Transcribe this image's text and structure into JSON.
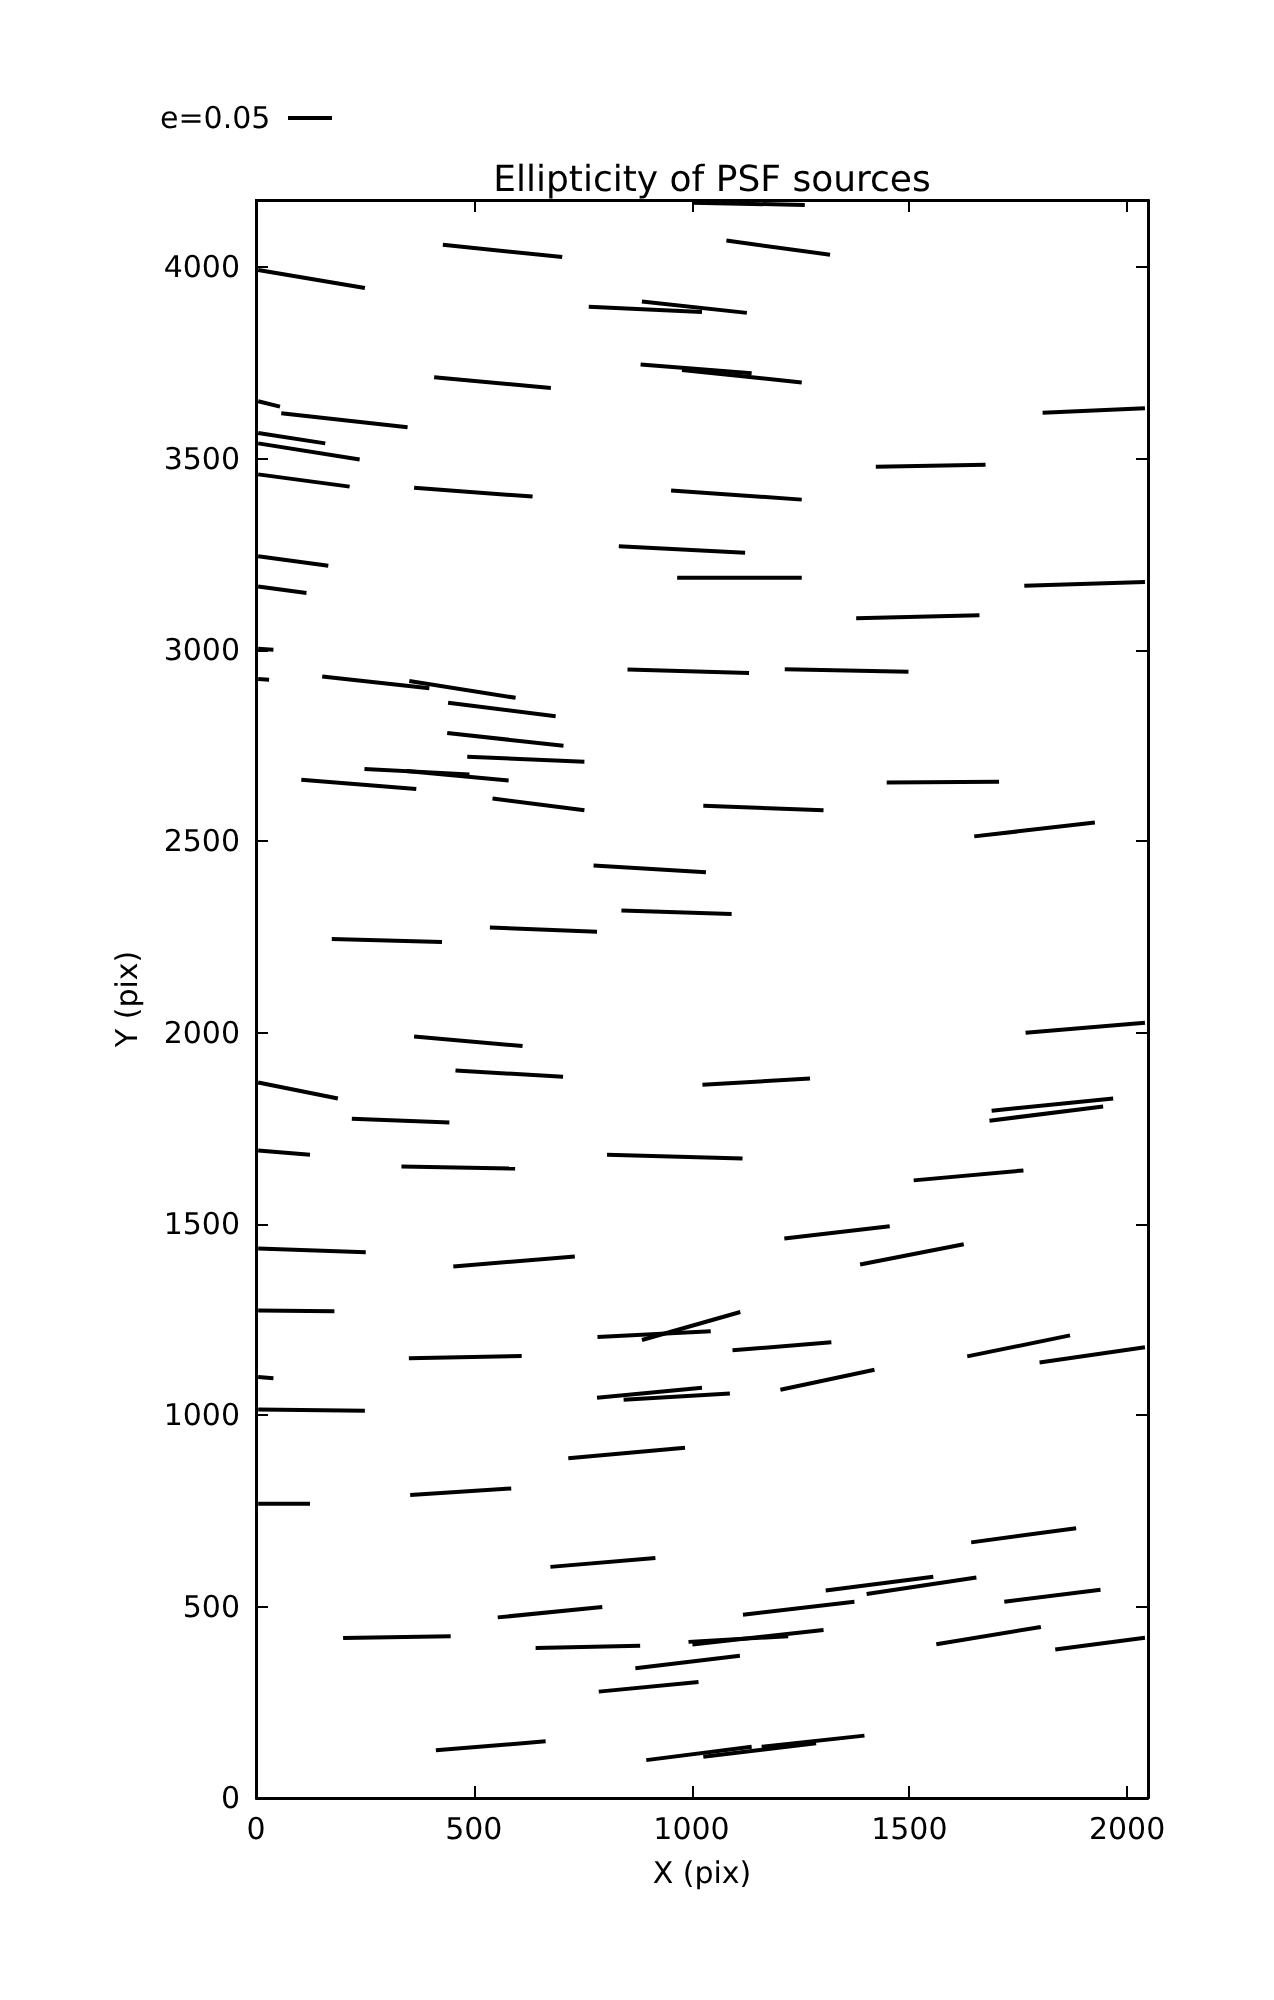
{
  "chart_data": {
    "type": "line",
    "title": "Ellipticity of PSF sources",
    "xlabel": "X (pix)",
    "ylabel": "Y (pix)",
    "annotations": [
      "e=0.05"
    ],
    "xlim": [
      0,
      2048
    ],
    "xticks": [
      0,
      500,
      1000,
      1500,
      2000
    ],
    "ylim": [
      0,
      4176
    ],
    "yticks": [
      0,
      500,
      1000,
      1500,
      2000,
      2500,
      3000,
      3500,
      4000
    ],
    "grid": false,
    "marker": "none",
    "line_style": "solid",
    "series": [
      {
        "color": "#000000",
        "x": [
          1001,
          1260
        ],
        "values": [
          4169,
          4163
        ]
      },
      {
        "color": "#000000",
        "x": [
          429,
          703
        ],
        "values": [
          4059,
          4027
        ]
      },
      {
        "color": "#000000",
        "x": [
          1080,
          1318
        ],
        "values": [
          4070,
          4033
        ]
      },
      {
        "color": "#000000",
        "x": [
          5,
          250
        ],
        "values": [
          3993,
          3946
        ]
      },
      {
        "color": "#000000",
        "x": [
          764,
          1024
        ],
        "values": [
          3897,
          3883
        ]
      },
      {
        "color": "#000000",
        "x": [
          886,
          1127
        ],
        "values": [
          3911,
          3881
        ]
      },
      {
        "color": "#000000",
        "x": [
          409,
          677
        ],
        "values": [
          3713,
          3685
        ]
      },
      {
        "color": "#000000",
        "x": [
          883,
          1138
        ],
        "values": [
          3746,
          3723
        ]
      },
      {
        "color": "#000000",
        "x": [
          978,
          1253
        ],
        "values": [
          3732,
          3699
        ]
      },
      {
        "color": "#000000",
        "x": [
          5,
          55
        ],
        "values": [
          3650,
          3636
        ]
      },
      {
        "color": "#000000",
        "x": [
          58,
          348
        ],
        "values": [
          3619,
          3582
        ]
      },
      {
        "color": "#000000",
        "x": [
          5,
          159
        ],
        "values": [
          3567,
          3540
        ]
      },
      {
        "color": "#000000",
        "x": [
          5,
          238
        ],
        "values": [
          3540,
          3498
        ]
      },
      {
        "color": "#000000",
        "x": [
          1806,
          2041
        ],
        "values": [
          3620,
          3632
        ]
      },
      {
        "color": "#000000",
        "x": [
          1423,
          1675
        ],
        "values": [
          3479,
          3484
        ]
      },
      {
        "color": "#000000",
        "x": [
          5,
          215
        ],
        "values": [
          3459,
          3427
        ]
      },
      {
        "color": "#000000",
        "x": [
          363,
          635
        ],
        "values": [
          3424,
          3401
        ]
      },
      {
        "color": "#000000",
        "x": [
          953,
          1253
        ],
        "values": [
          3417,
          3393
        ]
      },
      {
        "color": "#000000",
        "x": [
          5,
          166
        ],
        "values": [
          3245,
          3220
        ]
      },
      {
        "color": "#000000",
        "x": [
          833,
          1123
        ],
        "values": [
          3271,
          3254
        ]
      },
      {
        "color": "#000000",
        "x": [
          967,
          1253
        ],
        "values": [
          3189,
          3189
        ]
      },
      {
        "color": "#000000",
        "x": [
          1764,
          2041
        ],
        "values": [
          3168,
          3178
        ]
      },
      {
        "color": "#000000",
        "x": [
          5,
          116
        ],
        "values": [
          3166,
          3149
        ]
      },
      {
        "color": "#000000",
        "x": [
          1378,
          1661
        ],
        "values": [
          3083,
          3091
        ]
      },
      {
        "color": "#000000",
        "x": [
          5,
          40
        ],
        "values": [
          3003,
          3001
        ]
      },
      {
        "color": "#000000",
        "x": [
          5,
          30
        ],
        "values": [
          2924,
          2922
        ]
      },
      {
        "color": "#000000",
        "x": [
          152,
          398
        ],
        "values": [
          2931,
          2900
        ]
      },
      {
        "color": "#000000",
        "x": [
          352,
          596
        ],
        "values": [
          2919,
          2875
        ]
      },
      {
        "color": "#000000",
        "x": [
          853,
          1132
        ],
        "values": [
          2949,
          2940
        ]
      },
      {
        "color": "#000000",
        "x": [
          1214,
          1498
        ],
        "values": [
          2950,
          2943
        ]
      },
      {
        "color": "#000000",
        "x": [
          441,
          688
        ],
        "values": [
          2862,
          2827
        ]
      },
      {
        "color": "#000000",
        "x": [
          439,
          706
        ],
        "values": [
          2783,
          2750
        ]
      },
      {
        "color": "#000000",
        "x": [
          485,
          754
        ],
        "values": [
          2721,
          2708
        ]
      },
      {
        "color": "#000000",
        "x": [
          249,
          490
        ],
        "values": [
          2689,
          2675
        ]
      },
      {
        "color": "#000000",
        "x": [
          345,
          580
        ],
        "values": [
          2684,
          2659
        ]
      },
      {
        "color": "#000000",
        "x": [
          104,
          368
        ],
        "values": [
          2661,
          2637
        ]
      },
      {
        "color": "#000000",
        "x": [
          543,
          754
        ],
        "values": [
          2612,
          2581
        ]
      },
      {
        "color": "#000000",
        "x": [
          1027,
          1303
        ],
        "values": [
          2593,
          2581
        ]
      },
      {
        "color": "#000000",
        "x": [
          1448,
          1706
        ],
        "values": [
          2654,
          2656
        ]
      },
      {
        "color": "#000000",
        "x": [
          1649,
          1926
        ],
        "values": [
          2513,
          2549
        ]
      },
      {
        "color": "#000000",
        "x": [
          775,
          1033
        ],
        "values": [
          2437,
          2419
        ]
      },
      {
        "color": "#000000",
        "x": [
          839,
          1092
        ],
        "values": [
          2319,
          2310
        ]
      },
      {
        "color": "#000000",
        "x": [
          174,
          427
        ],
        "values": [
          2245,
          2237
        ]
      },
      {
        "color": "#000000",
        "x": [
          537,
          783
        ],
        "values": [
          2275,
          2264
        ]
      },
      {
        "color": "#000000",
        "x": [
          363,
          612
        ],
        "values": [
          1990,
          1965
        ]
      },
      {
        "color": "#000000",
        "x": [
          458,
          705
        ],
        "values": [
          1901,
          1885
        ]
      },
      {
        "color": "#000000",
        "x": [
          5,
          188
        ],
        "values": [
          1870,
          1828
        ]
      },
      {
        "color": "#000000",
        "x": [
          1767,
          2041
        ],
        "values": [
          2000,
          2026
        ]
      },
      {
        "color": "#000000",
        "x": [
          1025,
          1272
        ],
        "values": [
          1864,
          1880
        ]
      },
      {
        "color": "#000000",
        "x": [
          220,
          444
        ],
        "values": [
          1775,
          1765
        ]
      },
      {
        "color": "#000000",
        "x": [
          1689,
          1968
        ],
        "values": [
          1796,
          1828
        ]
      },
      {
        "color": "#000000",
        "x": [
          1684,
          1945
        ],
        "values": [
          1770,
          1807
        ]
      },
      {
        "color": "#000000",
        "x": [
          5,
          124
        ],
        "values": [
          1692,
          1681
        ]
      },
      {
        "color": "#000000",
        "x": [
          334,
          595
        ],
        "values": [
          1650,
          1645
        ]
      },
      {
        "color": "#000000",
        "x": [
          806,
          1117
        ],
        "values": [
          1681,
          1671
        ]
      },
      {
        "color": "#000000",
        "x": [
          1510,
          1762
        ],
        "values": [
          1614,
          1640
        ]
      },
      {
        "color": "#000000",
        "x": [
          5,
          252
        ],
        "values": [
          1436,
          1426
        ]
      },
      {
        "color": "#000000",
        "x": [
          453,
          732
        ],
        "values": [
          1389,
          1415
        ]
      },
      {
        "color": "#000000",
        "x": [
          1213,
          1455
        ],
        "values": [
          1462,
          1494
        ]
      },
      {
        "color": "#000000",
        "x": [
          1387,
          1625
        ],
        "values": [
          1394,
          1447
        ]
      },
      {
        "color": "#000000",
        "x": [
          5,
          180
        ],
        "values": [
          1274,
          1272
        ]
      },
      {
        "color": "#000000",
        "x": [
          351,
          610
        ],
        "values": [
          1149,
          1155
        ]
      },
      {
        "color": "#000000",
        "x": [
          784,
          1044
        ],
        "values": [
          1205,
          1220
        ]
      },
      {
        "color": "#000000",
        "x": [
          886,
          1112
        ],
        "values": [
          1197,
          1270
        ]
      },
      {
        "color": "#000000",
        "x": [
          1094,
          1321
        ],
        "values": [
          1170,
          1191
        ]
      },
      {
        "color": "#000000",
        "x": [
          1633,
          1869
        ],
        "values": [
          1154,
          1209
        ]
      },
      {
        "color": "#000000",
        "x": [
          1799,
          2041
        ],
        "values": [
          1138,
          1178
        ]
      },
      {
        "color": "#000000",
        "x": [
          5,
          40
        ],
        "values": [
          1100,
          1097
        ]
      },
      {
        "color": "#000000",
        "x": [
          783,
          1024
        ],
        "values": [
          1046,
          1072
        ]
      },
      {
        "color": "#000000",
        "x": [
          844,
          1088
        ],
        "values": [
          1041,
          1057
        ]
      },
      {
        "color": "#000000",
        "x": [
          1204,
          1420
        ],
        "values": [
          1067,
          1119
        ]
      },
      {
        "color": "#000000",
        "x": [
          5,
          250
        ],
        "values": [
          1015,
          1012
        ]
      },
      {
        "color": "#000000",
        "x": [
          717,
          985
        ],
        "values": [
          888,
          915
        ]
      },
      {
        "color": "#000000",
        "x": [
          5,
          124
        ],
        "values": [
          769,
          769
        ]
      },
      {
        "color": "#000000",
        "x": [
          354,
          586
        ],
        "values": [
          792,
          809
        ]
      },
      {
        "color": "#000000",
        "x": [
          1642,
          1883
        ],
        "values": [
          668,
          705
        ]
      },
      {
        "color": "#000000",
        "x": [
          676,
          917
        ],
        "values": [
          604,
          627
        ]
      },
      {
        "color": "#000000",
        "x": [
          555,
          795
        ],
        "values": [
          472,
          499
        ]
      },
      {
        "color": "#000000",
        "x": [
          200,
          447
        ],
        "values": [
          418,
          423
        ]
      },
      {
        "color": "#000000",
        "x": [
          642,
          882
        ],
        "values": [
          392,
          398
        ]
      },
      {
        "color": "#000000",
        "x": [
          993,
          1222
        ],
        "values": [
          408,
          423
        ]
      },
      {
        "color": "#000000",
        "x": [
          1002,
          1303
        ],
        "values": [
          401,
          439
        ]
      },
      {
        "color": "#000000",
        "x": [
          1118,
          1374
        ],
        "values": [
          479,
          513
        ]
      },
      {
        "color": "#000000",
        "x": [
          1308,
          1555
        ],
        "values": [
          542,
          578
        ]
      },
      {
        "color": "#000000",
        "x": [
          1402,
          1654
        ],
        "values": [
          533,
          576
        ]
      },
      {
        "color": "#000000",
        "x": [
          1718,
          1939
        ],
        "values": [
          513,
          544
        ]
      },
      {
        "color": "#000000",
        "x": [
          1562,
          1802
        ],
        "values": [
          402,
          447
        ]
      },
      {
        "color": "#000000",
        "x": [
          1835,
          2041
        ],
        "values": [
          388,
          419
        ]
      },
      {
        "color": "#000000",
        "x": [
          871,
          1111
        ],
        "values": [
          339,
          372
        ]
      },
      {
        "color": "#000000",
        "x": [
          787,
          1016
        ],
        "values": [
          278,
          303
        ]
      },
      {
        "color": "#000000",
        "x": [
          413,
          665
        ],
        "values": [
          125,
          148
        ]
      },
      {
        "color": "#000000",
        "x": [
          896,
          1138
        ],
        "values": [
          99,
          134
        ]
      },
      {
        "color": "#000000",
        "x": [
          1027,
          1286
        ],
        "values": [
          108,
          143
        ]
      },
      {
        "color": "#000000",
        "x": [
          1161,
          1397
        ],
        "values": [
          134,
          163
        ]
      }
    ]
  }
}
